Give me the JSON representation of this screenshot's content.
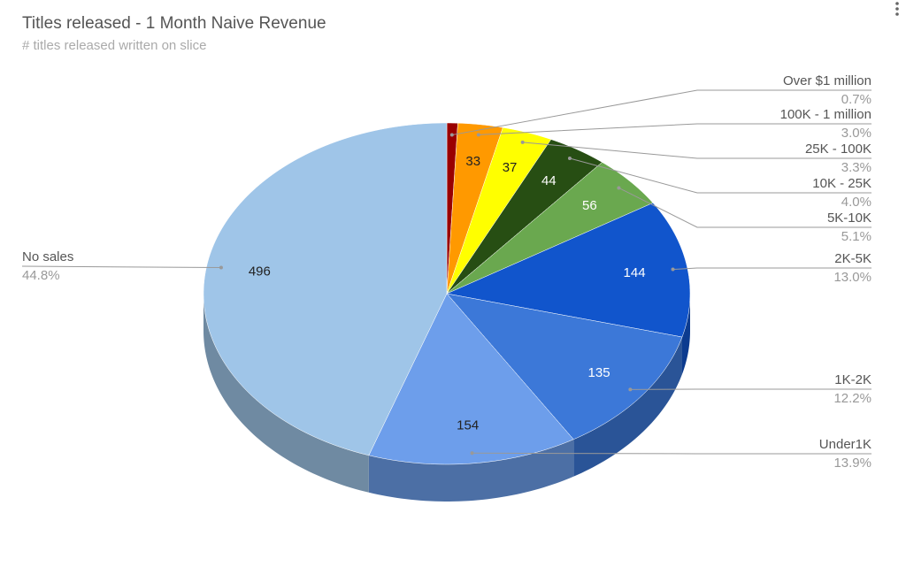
{
  "chart_data": {
    "type": "pie3d",
    "title": "Titles released - 1 Month Naive Revenue",
    "subtitle": "# titles released written on slice",
    "categories": [
      "Over $1 million",
      "100K - 1 million",
      "25K - 100K",
      "10K - 25K",
      "5K-10K",
      "2K-5K",
      "1K-2K",
      "Under1K",
      "No sales"
    ],
    "values": [
      8,
      33,
      37,
      44,
      56,
      144,
      135,
      154,
      496
    ],
    "percent_labels": [
      "0.7%",
      "3.0%",
      "3.3%",
      "4.0%",
      "5.1%",
      "13.0%",
      "12.2%",
      "13.9%",
      "44.8%"
    ],
    "colors": [
      "#990000",
      "#ff9900",
      "#ffff00",
      "#274e13",
      "#6aa84f",
      "#1155cc",
      "#3c78d8",
      "#6d9eeb",
      "#9fc5e8"
    ]
  }
}
